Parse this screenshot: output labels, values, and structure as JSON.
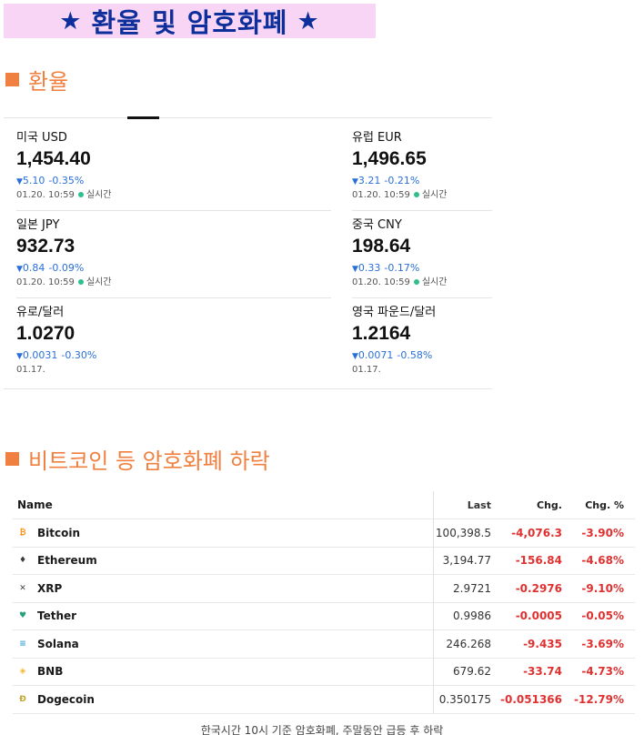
{
  "banner": {
    "star": "★",
    "title": "환율 및 암호화폐"
  },
  "fx_section": {
    "title": "환율"
  },
  "fx": [
    {
      "name": "미국 USD",
      "value": "1,454.40",
      "arrow": "▼",
      "change": "5.10",
      "pct": "-0.35%",
      "time": "01.20. 10:59",
      "realtime": "실시간"
    },
    {
      "name": "유럽 EUR",
      "value": "1,496.65",
      "arrow": "▼",
      "change": "3.21",
      "pct": "-0.21%",
      "time": "01.20. 10:59",
      "realtime": "실시간"
    },
    {
      "name": "일본 JPY",
      "value": "932.73",
      "arrow": "▼",
      "change": "0.84",
      "pct": "-0.09%",
      "time": "01.20. 10:59",
      "realtime": "실시간"
    },
    {
      "name": "중국 CNY",
      "value": "198.64",
      "arrow": "▼",
      "change": "0.33",
      "pct": "-0.17%",
      "time": "01.20. 10:59",
      "realtime": "실시간"
    },
    {
      "name": "유로/달러",
      "value": "1.0270",
      "arrow": "▼",
      "change": "0.0031",
      "pct": "-0.30%",
      "time": "01.17.",
      "realtime": ""
    },
    {
      "name": "영국 파운드/달러",
      "value": "1.2164",
      "arrow": "▼",
      "change": "0.0071",
      "pct": "-0.58%",
      "time": "01.17.",
      "realtime": ""
    }
  ],
  "crypto_section": {
    "title": "비트코인 등 암호화폐 하락"
  },
  "crypto_table": {
    "headers": {
      "name": "Name",
      "last": "Last",
      "chg": "Chg.",
      "pct": "Chg. %"
    },
    "rows": [
      {
        "name": "Bitcoin",
        "icon": "bitcoin-icon",
        "glyph": "₿",
        "color": "#f7931a",
        "last": "100,398.5",
        "chg": "-4,076.3",
        "pct": "-3.90%"
      },
      {
        "name": "Ethereum",
        "icon": "ethereum-icon",
        "glyph": "♦",
        "color": "#3c3c3d",
        "last": "3,194.77",
        "chg": "-156.84",
        "pct": "-4.68%"
      },
      {
        "name": "XRP",
        "icon": "xrp-icon",
        "glyph": "✕",
        "color": "#444444",
        "last": "2.9721",
        "chg": "-0.2976",
        "pct": "-9.10%"
      },
      {
        "name": "Tether",
        "icon": "tether-icon",
        "glyph": "♥",
        "color": "#26a17b",
        "last": "0.9986",
        "chg": "-0.0005",
        "pct": "-0.05%"
      },
      {
        "name": "Solana",
        "icon": "solana-icon",
        "glyph": "≡",
        "color": "#42a5d6",
        "last": "246.268",
        "chg": "-9.435",
        "pct": "-3.69%"
      },
      {
        "name": "BNB",
        "icon": "bnb-icon",
        "glyph": "◈",
        "color": "#f3ba2f",
        "last": "679.62",
        "chg": "-33.74",
        "pct": "-4.73%"
      },
      {
        "name": "Dogecoin",
        "icon": "dogecoin-icon",
        "glyph": "Ð",
        "color": "#c2a633",
        "last": "0.350175",
        "chg": "-0.051366",
        "pct": "-12.79%"
      }
    ]
  },
  "caption": "한국시간 10시 기준 암호화폐, 주말동안 급등 후 하락"
}
